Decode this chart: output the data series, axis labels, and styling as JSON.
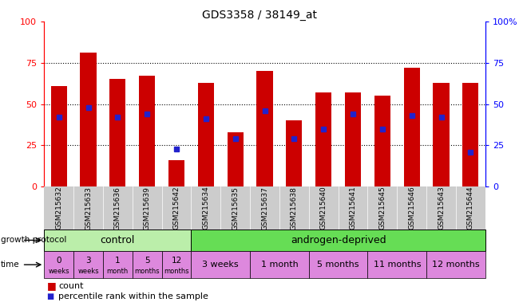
{
  "title": "GDS3358 / 38149_at",
  "samples": [
    "GSM215632",
    "GSM215633",
    "GSM215636",
    "GSM215639",
    "GSM215642",
    "GSM215634",
    "GSM215635",
    "GSM215637",
    "GSM215638",
    "GSM215640",
    "GSM215641",
    "GSM215645",
    "GSM215646",
    "GSM215643",
    "GSM215644"
  ],
  "count_values": [
    61,
    81,
    65,
    67,
    16,
    63,
    33,
    70,
    40,
    57,
    57,
    55,
    72,
    63,
    63
  ],
  "percentile_values": [
    42,
    48,
    42,
    44,
    23,
    41,
    29,
    46,
    29,
    35,
    44,
    35,
    43,
    42,
    21
  ],
  "ylim": [
    0,
    100
  ],
  "bar_color": "#cc0000",
  "dot_color": "#2222cc",
  "control_color": "#bbeeaa",
  "androgen_color": "#66dd55",
  "time_color": "#dd88dd",
  "sample_bg_color": "#cccccc",
  "control_label": "control",
  "androgen_label": "androgen-deprived",
  "growth_protocol_label": "growth protocol",
  "time_label": "time",
  "legend_count": "count",
  "legend_percentile": "percentile rank within the sample",
  "control_times_line1": [
    "0",
    "3",
    "1",
    "5",
    "12"
  ],
  "control_times_line2": [
    "weeks",
    "weeks",
    "month",
    "months",
    "months"
  ],
  "androgen_times": [
    "3 weeks",
    "1 month",
    "5 months",
    "11 months",
    "12 months"
  ],
  "n_control": 5,
  "n_samples": 15,
  "adep_groups": [
    2,
    2,
    2,
    2,
    2
  ]
}
